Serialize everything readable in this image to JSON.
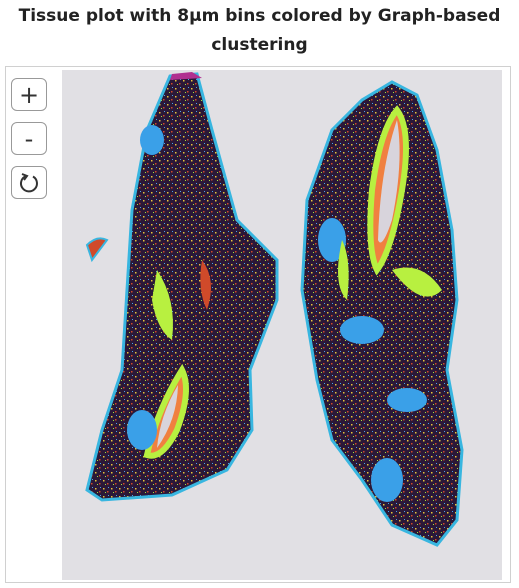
{
  "header": {
    "title": "Tissue plot with 8µm bins colored by Graph-based clustering"
  },
  "controls": {
    "zoom_in": "+",
    "zoom_out": "-"
  }
}
